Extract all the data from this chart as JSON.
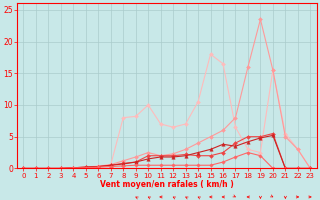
{
  "xlabel": "Vent moyen/en rafales ( km/h )",
  "xlim": [
    -0.5,
    23.5
  ],
  "ylim": [
    0,
    26
  ],
  "yticks": [
    0,
    5,
    10,
    15,
    20,
    25
  ],
  "xticks": [
    0,
    1,
    2,
    3,
    4,
    5,
    6,
    7,
    8,
    9,
    10,
    11,
    12,
    13,
    14,
    15,
    16,
    17,
    18,
    19,
    20,
    21,
    22,
    23
  ],
  "bg_color": "#c8e8e8",
  "grid_color": "#aacccc",
  "series": [
    {
      "x": [
        0,
        1,
        2,
        3,
        4,
        5,
        6,
        7,
        8,
        9,
        10,
        11,
        12,
        13,
        14,
        15,
        16,
        17,
        18,
        19,
        20,
        21,
        22,
        23
      ],
      "y": [
        0,
        0,
        0,
        0,
        0.1,
        0.2,
        0.4,
        0.6,
        8.0,
        8.2,
        10.0,
        7.0,
        6.5,
        7.0,
        10.5,
        18.0,
        16.5,
        6.5,
        3.0,
        2.5,
        15.5,
        5.5,
        3.0,
        0.0
      ],
      "color": "#ffbbbb",
      "lw": 0.8,
      "marker": "D",
      "ms": 2.0
    },
    {
      "x": [
        0,
        1,
        2,
        3,
        4,
        5,
        6,
        7,
        8,
        9,
        10,
        11,
        12,
        13,
        14,
        15,
        16,
        17,
        18,
        19,
        20,
        21,
        22,
        23
      ],
      "y": [
        0,
        0,
        0,
        0,
        0.1,
        0.2,
        0.3,
        0.6,
        1.2,
        1.8,
        2.5,
        2.0,
        2.3,
        3.0,
        4.0,
        5.0,
        6.0,
        8.0,
        16.0,
        23.5,
        15.5,
        5.0,
        3.0,
        0.0
      ],
      "color": "#ff9999",
      "lw": 0.8,
      "marker": "D",
      "ms": 2.0
    },
    {
      "x": [
        0,
        1,
        2,
        3,
        4,
        5,
        6,
        7,
        8,
        9,
        10,
        11,
        12,
        13,
        14,
        15,
        16,
        17,
        18,
        19,
        20,
        21,
        22,
        23
      ],
      "y": [
        0,
        0,
        0,
        0,
        0.1,
        0.2,
        0.3,
        0.5,
        0.8,
        1.0,
        2.0,
        2.0,
        2.0,
        2.2,
        2.0,
        2.0,
        2.5,
        4.0,
        5.0,
        5.0,
        5.5,
        0.0,
        0.0,
        0.0
      ],
      "color": "#ee4444",
      "lw": 0.8,
      "marker": "D",
      "ms": 2.0
    },
    {
      "x": [
        0,
        1,
        2,
        3,
        4,
        5,
        6,
        7,
        8,
        9,
        10,
        11,
        12,
        13,
        14,
        15,
        16,
        17,
        18,
        19,
        20,
        21,
        22,
        23
      ],
      "y": [
        0,
        0,
        0,
        0,
        0.1,
        0.2,
        0.3,
        0.5,
        0.7,
        1.0,
        1.5,
        1.8,
        1.8,
        2.0,
        2.5,
        3.0,
        3.8,
        3.5,
        4.2,
        4.8,
        5.2,
        0.0,
        0.0,
        0.0
      ],
      "color": "#cc2222",
      "lw": 0.8,
      "marker": "^",
      "ms": 2.5
    },
    {
      "x": [
        0,
        1,
        2,
        3,
        4,
        5,
        6,
        7,
        8,
        9,
        10,
        11,
        12,
        13,
        14,
        15,
        16,
        17,
        18,
        19,
        20,
        21,
        22,
        23
      ],
      "y": [
        0,
        0,
        0,
        0,
        0.1,
        0.1,
        0.2,
        0.3,
        0.4,
        0.5,
        0.5,
        0.5,
        0.5,
        0.5,
        0.5,
        0.5,
        1.0,
        1.8,
        2.5,
        2.0,
        0.0,
        0.0,
        0.0,
        0.0
      ],
      "color": "#ff6666",
      "lw": 0.8,
      "marker": "D",
      "ms": 1.8
    }
  ],
  "wind_arrows": {
    "x_positions": [
      9,
      10,
      11,
      12,
      13,
      14,
      15,
      16,
      17,
      18,
      19,
      20,
      21,
      22,
      23
    ],
    "angles_deg": [
      225,
      225,
      270,
      225,
      225,
      225,
      270,
      270,
      45,
      270,
      0,
      45,
      0,
      90,
      90
    ]
  }
}
